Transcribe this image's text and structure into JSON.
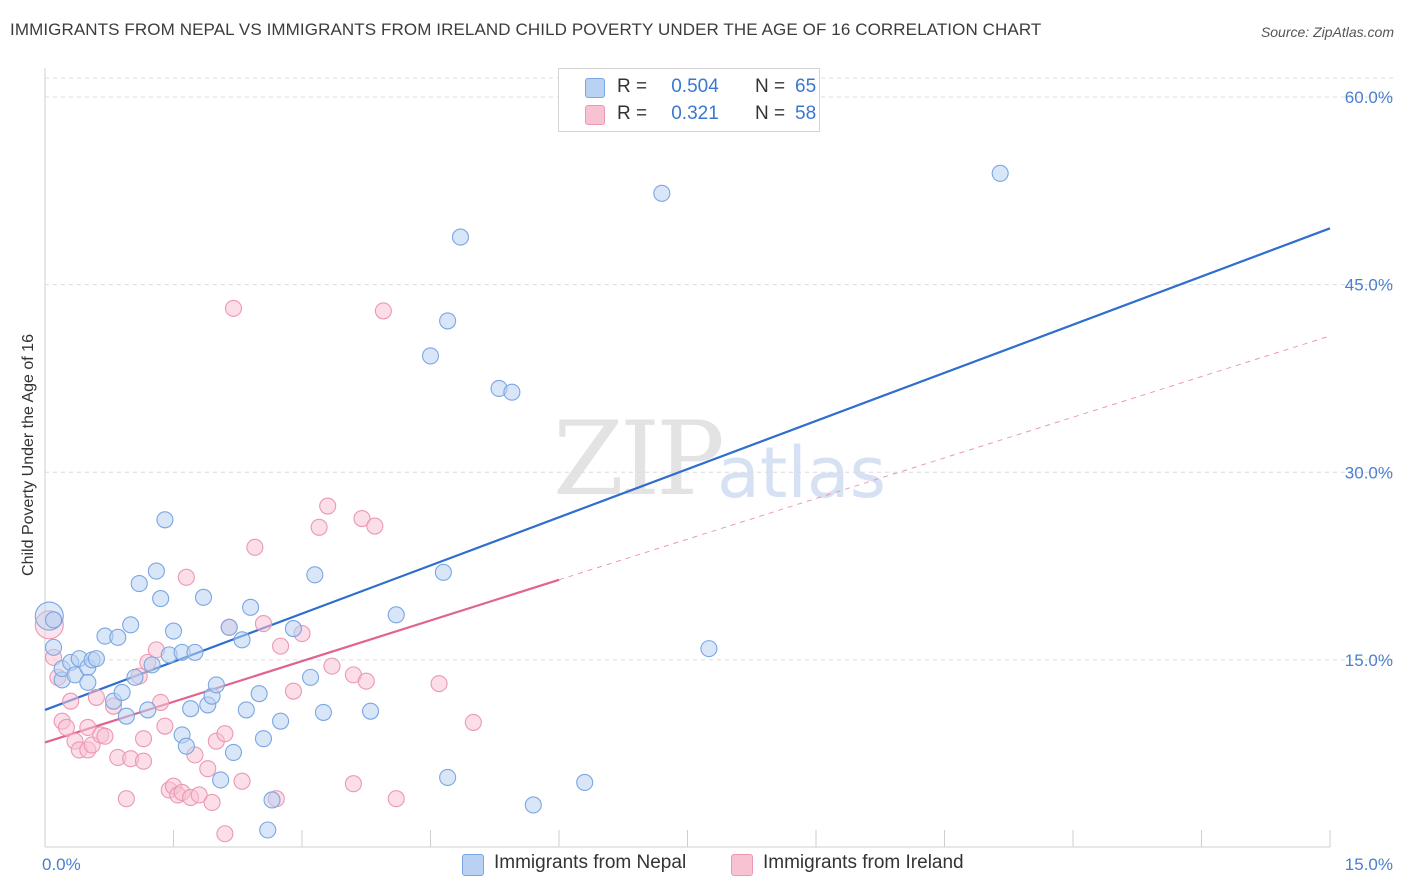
{
  "title": "IMMIGRANTS FROM NEPAL VS IMMIGRANTS FROM IRELAND CHILD POVERTY UNDER THE AGE OF 16 CORRELATION CHART",
  "source": "Source: ZipAtlas.com",
  "watermark": {
    "zip": "ZIP",
    "atlas": "atlas"
  },
  "legend": {
    "rows": [
      {
        "r_label": "R =",
        "r_value": "0.504",
        "n_label": "N =",
        "n_value": "65"
      },
      {
        "r_label": "R =",
        "r_value": "0.321",
        "n_label": "N =",
        "n_value": "58"
      }
    ]
  },
  "chart_data": {
    "type": "scatter",
    "title": "IMMIGRANTS FROM NEPAL VS IMMIGRANTS FROM IRELAND CHILD POVERTY UNDER THE AGE OF 16 CORRELATION CHART",
    "xlabel": "",
    "ylabel": "Child Poverty Under the Age of 16",
    "xlim": [
      0,
      15
    ],
    "ylim": [
      0,
      62
    ],
    "x_tick_labels": [
      "0.0%",
      "15.0%"
    ],
    "y_ticks": [
      15,
      30,
      45,
      60
    ],
    "y_tick_labels": [
      "15.0%",
      "30.0%",
      "45.0%",
      "60.0%"
    ],
    "colors": {
      "nepal_fill": "#b9d1f2",
      "nepal_stroke": "#7aa6e3",
      "nepal_line": "#2e6fcc",
      "ireland_fill": "#f7c3d3",
      "ireland_stroke": "#ec98b3",
      "ireland_line": "#e0648f"
    },
    "series": [
      {
        "name": "Immigrants from Nepal",
        "r": 0.504,
        "n": 65,
        "trend": {
          "x": [
            0,
            15
          ],
          "y": [
            11.0,
            49.5
          ],
          "style": "solid"
        },
        "points": [
          [
            0.05,
            18.5
          ],
          [
            0.1,
            18.2
          ],
          [
            0.1,
            16.0
          ],
          [
            0.2,
            13.4
          ],
          [
            0.2,
            14.3
          ],
          [
            0.3,
            14.8
          ],
          [
            0.35,
            13.8
          ],
          [
            0.4,
            15.1
          ],
          [
            0.5,
            14.4
          ],
          [
            0.5,
            13.2
          ],
          [
            0.55,
            15.0
          ],
          [
            0.6,
            15.1
          ],
          [
            0.7,
            16.9
          ],
          [
            0.8,
            11.7
          ],
          [
            0.85,
            16.8
          ],
          [
            0.9,
            12.4
          ],
          [
            0.95,
            10.5
          ],
          [
            1.0,
            17.8
          ],
          [
            1.05,
            13.6
          ],
          [
            1.1,
            21.1
          ],
          [
            1.2,
            11.0
          ],
          [
            1.25,
            14.6
          ],
          [
            1.3,
            22.1
          ],
          [
            1.35,
            19.9
          ],
          [
            1.4,
            26.2
          ],
          [
            1.45,
            15.4
          ],
          [
            1.5,
            17.3
          ],
          [
            1.6,
            15.6
          ],
          [
            1.6,
            9.0
          ],
          [
            1.65,
            8.1
          ],
          [
            1.7,
            11.1
          ],
          [
            1.75,
            15.6
          ],
          [
            1.85,
            20.0
          ],
          [
            1.9,
            11.4
          ],
          [
            1.95,
            12.1
          ],
          [
            2.0,
            13.0
          ],
          [
            2.05,
            5.4
          ],
          [
            2.15,
            17.6
          ],
          [
            2.2,
            7.6
          ],
          [
            2.3,
            16.6
          ],
          [
            2.35,
            11.0
          ],
          [
            2.4,
            19.2
          ],
          [
            2.5,
            12.3
          ],
          [
            2.55,
            8.7
          ],
          [
            2.65,
            3.8
          ],
          [
            2.6,
            1.4
          ],
          [
            2.75,
            10.1
          ],
          [
            2.9,
            17.5
          ],
          [
            3.1,
            13.6
          ],
          [
            3.15,
            21.8
          ],
          [
            3.25,
            10.8
          ],
          [
            3.8,
            10.9
          ],
          [
            4.1,
            18.6
          ],
          [
            4.5,
            39.3
          ],
          [
            4.7,
            42.1
          ],
          [
            4.65,
            22.0
          ],
          [
            4.7,
            5.6
          ],
          [
            4.85,
            48.8
          ],
          [
            5.3,
            36.7
          ],
          [
            5.45,
            36.4
          ],
          [
            5.7,
            3.4
          ],
          [
            6.3,
            5.2
          ],
          [
            7.2,
            52.3
          ],
          [
            7.75,
            15.9
          ],
          [
            11.15,
            53.9
          ]
        ]
      },
      {
        "name": "Immigrants from Ireland",
        "r": 0.321,
        "n": 58,
        "trend": {
          "x": [
            0,
            6.0
          ],
          "y": [
            8.4,
            21.4
          ],
          "style": "solid"
        },
        "trend_extension": {
          "x": [
            6.0,
            15
          ],
          "y": [
            21.4,
            40.9
          ],
          "style": "dashed"
        },
        "points": [
          [
            0.05,
            17.8
          ],
          [
            0.1,
            15.2
          ],
          [
            0.15,
            13.6
          ],
          [
            0.2,
            10.1
          ],
          [
            0.25,
            9.6
          ],
          [
            0.3,
            11.7
          ],
          [
            0.35,
            8.5
          ],
          [
            0.4,
            7.8
          ],
          [
            0.5,
            7.8
          ],
          [
            0.5,
            9.6
          ],
          [
            0.55,
            8.2
          ],
          [
            0.6,
            12.0
          ],
          [
            0.65,
            9.0
          ],
          [
            0.7,
            8.9
          ],
          [
            0.8,
            11.3
          ],
          [
            0.85,
            7.2
          ],
          [
            0.95,
            3.9
          ],
          [
            1.0,
            7.1
          ],
          [
            1.1,
            13.7
          ],
          [
            1.15,
            6.9
          ],
          [
            1.15,
            8.7
          ],
          [
            1.2,
            14.8
          ],
          [
            1.3,
            15.8
          ],
          [
            1.35,
            11.6
          ],
          [
            1.4,
            9.7
          ],
          [
            1.45,
            4.6
          ],
          [
            1.5,
            4.9
          ],
          [
            1.55,
            4.2
          ],
          [
            1.6,
            4.4
          ],
          [
            1.65,
            21.6
          ],
          [
            1.7,
            4.0
          ],
          [
            1.75,
            7.4
          ],
          [
            1.8,
            4.2
          ],
          [
            1.9,
            6.3
          ],
          [
            1.95,
            3.6
          ],
          [
            2.0,
            8.5
          ],
          [
            2.1,
            9.1
          ],
          [
            2.1,
            1.1
          ],
          [
            2.15,
            17.6
          ],
          [
            2.2,
            43.1
          ],
          [
            2.3,
            5.3
          ],
          [
            2.45,
            24.0
          ],
          [
            2.55,
            17.9
          ],
          [
            2.7,
            3.9
          ],
          [
            2.75,
            16.1
          ],
          [
            2.9,
            12.5
          ],
          [
            3.0,
            17.1
          ],
          [
            3.2,
            25.6
          ],
          [
            3.3,
            27.3
          ],
          [
            3.35,
            14.5
          ],
          [
            3.6,
            13.8
          ],
          [
            3.6,
            5.1
          ],
          [
            3.7,
            26.3
          ],
          [
            3.75,
            13.3
          ],
          [
            3.85,
            25.7
          ],
          [
            3.95,
            42.9
          ],
          [
            4.1,
            3.9
          ],
          [
            4.6,
            13.1
          ],
          [
            5.0,
            10.0
          ]
        ]
      }
    ]
  },
  "bottom_legend": [
    "Immigrants from Nepal",
    "Immigrants from Ireland"
  ]
}
